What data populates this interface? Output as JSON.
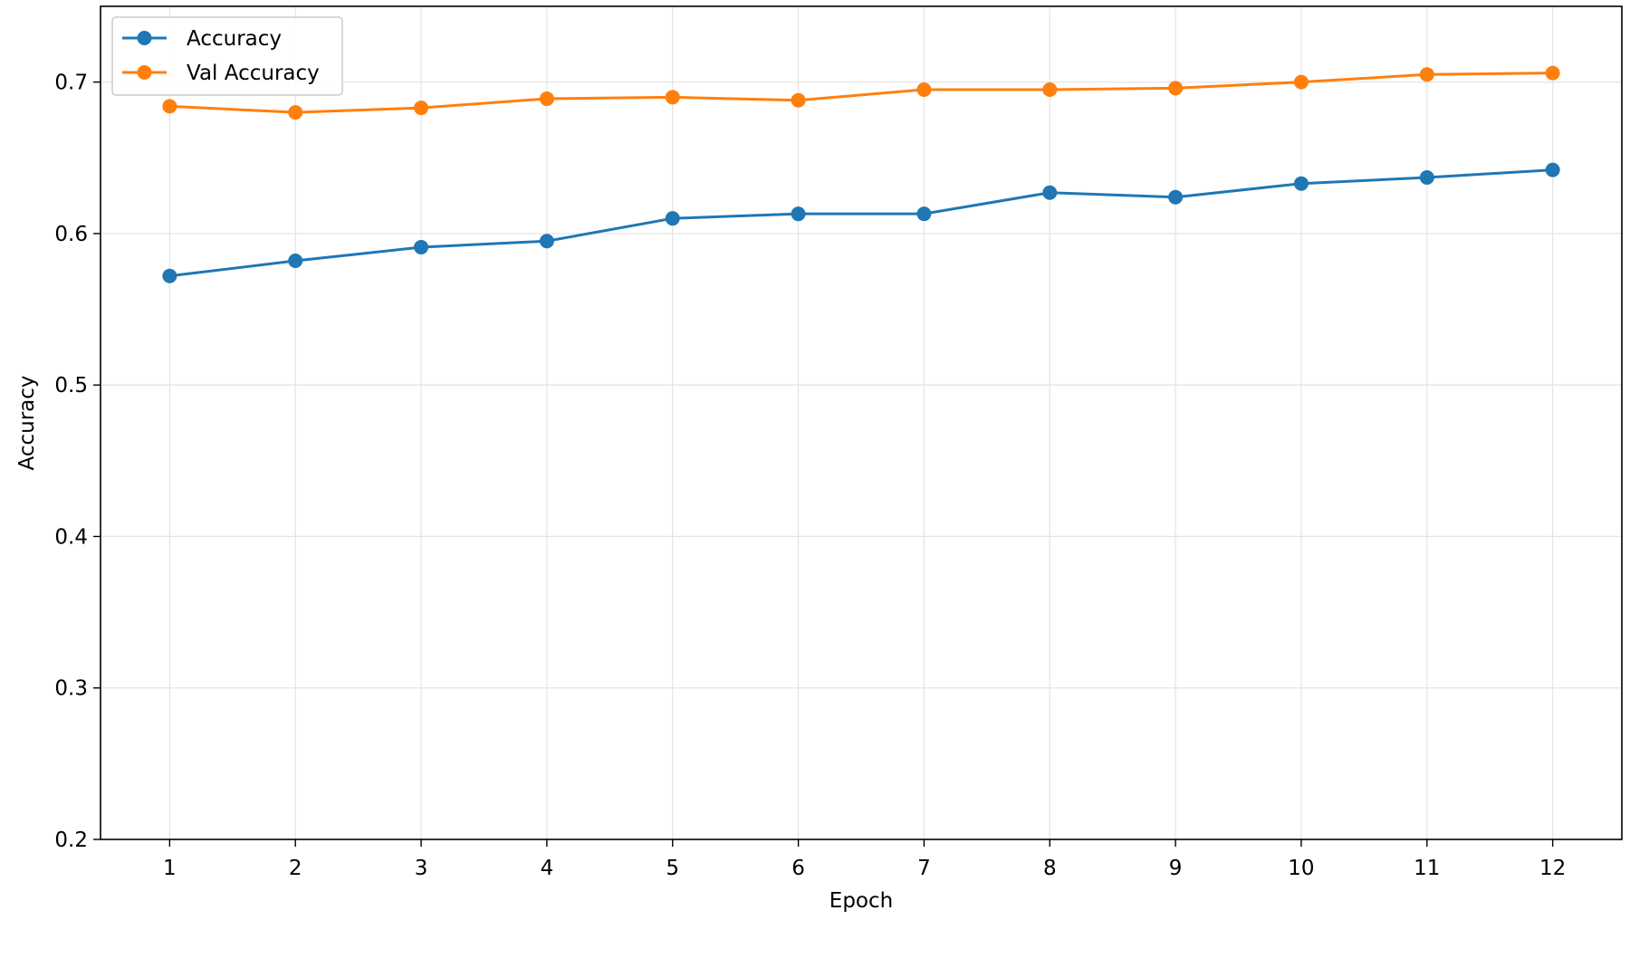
{
  "chart_data": {
    "type": "line",
    "xlabel": "Epoch",
    "ylabel": "Accuracy",
    "x": [
      1,
      2,
      3,
      4,
      5,
      6,
      7,
      8,
      9,
      10,
      11,
      12
    ],
    "xticks": [
      "1",
      "2",
      "3",
      "4",
      "5",
      "6",
      "7",
      "8",
      "9",
      "10",
      "11",
      "12"
    ],
    "xlim": [
      0.45,
      12.55
    ],
    "ylim": [
      0.2,
      0.75
    ],
    "yticks": [
      "0.2",
      "0.3",
      "0.4",
      "0.5",
      "0.6",
      "0.7"
    ],
    "grid": true,
    "legend_position": "top-left",
    "series": [
      {
        "name": "Accuracy",
        "color": "#1f77b4",
        "marker": "circle",
        "values": [
          0.572,
          0.582,
          0.591,
          0.595,
          0.61,
          0.613,
          0.613,
          0.627,
          0.624,
          0.633,
          0.637,
          0.642
        ]
      },
      {
        "name": "Val Accuracy",
        "color": "#ff7f0e",
        "marker": "circle",
        "values": [
          0.684,
          0.68,
          0.683,
          0.689,
          0.69,
          0.688,
          0.695,
          0.695,
          0.696,
          0.7,
          0.705,
          0.706
        ]
      }
    ]
  }
}
